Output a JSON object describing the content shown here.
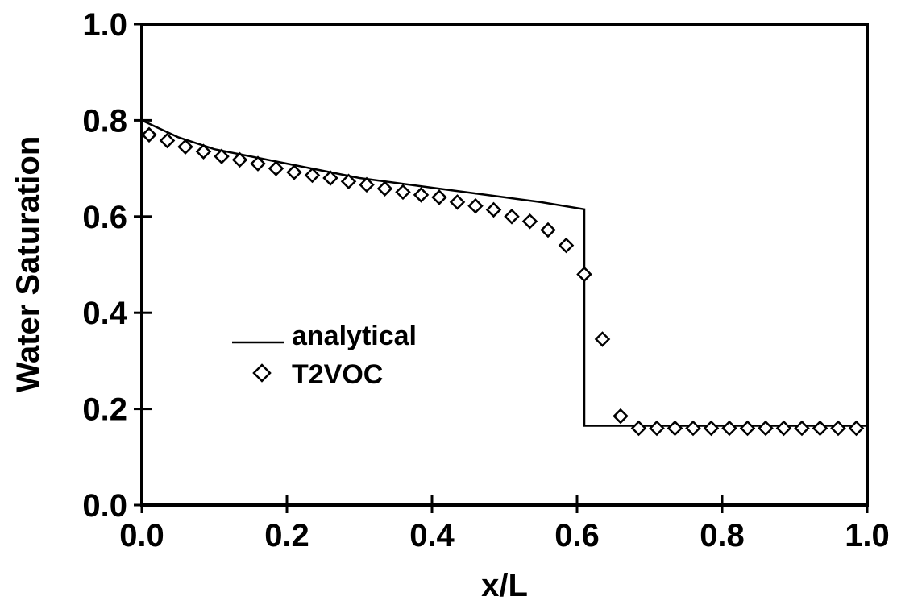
{
  "chart_data": {
    "type": "line",
    "title": "",
    "xlabel": "x/L",
    "ylabel": "Water Saturation",
    "xlim": [
      0.0,
      1.0
    ],
    "ylim": [
      0.0,
      1.0
    ],
    "xticks": [
      "0.0",
      "0.2",
      "0.4",
      "0.6",
      "0.8",
      "1.0"
    ],
    "yticks": [
      "0.0",
      "0.2",
      "0.4",
      "0.6",
      "0.8",
      "1.0"
    ],
    "grid": false,
    "legend_position": "center-left",
    "series": [
      {
        "name": "analytical",
        "style": "line",
        "x": [
          0.0,
          0.05,
          0.1,
          0.2,
          0.3,
          0.4,
          0.5,
          0.55,
          0.61,
          0.61,
          1.0
        ],
        "y": [
          0.8,
          0.765,
          0.74,
          0.71,
          0.68,
          0.66,
          0.64,
          0.63,
          0.615,
          0.165,
          0.165
        ]
      },
      {
        "name": "T2VOC",
        "style": "diamond",
        "x": [
          0.01,
          0.035,
          0.06,
          0.085,
          0.11,
          0.135,
          0.16,
          0.185,
          0.21,
          0.235,
          0.26,
          0.285,
          0.31,
          0.335,
          0.36,
          0.385,
          0.41,
          0.435,
          0.46,
          0.485,
          0.51,
          0.535,
          0.56,
          0.585,
          0.61,
          0.635,
          0.66,
          0.685,
          0.71,
          0.735,
          0.76,
          0.785,
          0.81,
          0.835,
          0.86,
          0.885,
          0.91,
          0.935,
          0.96,
          0.985
        ],
        "y": [
          0.77,
          0.758,
          0.745,
          0.735,
          0.725,
          0.718,
          0.71,
          0.7,
          0.692,
          0.686,
          0.68,
          0.673,
          0.666,
          0.658,
          0.651,
          0.645,
          0.64,
          0.63,
          0.622,
          0.614,
          0.6,
          0.59,
          0.572,
          0.54,
          0.48,
          0.345,
          0.185,
          0.16,
          0.16,
          0.16,
          0.16,
          0.16,
          0.16,
          0.16,
          0.16,
          0.16,
          0.16,
          0.16,
          0.16,
          0.16
        ]
      }
    ]
  }
}
